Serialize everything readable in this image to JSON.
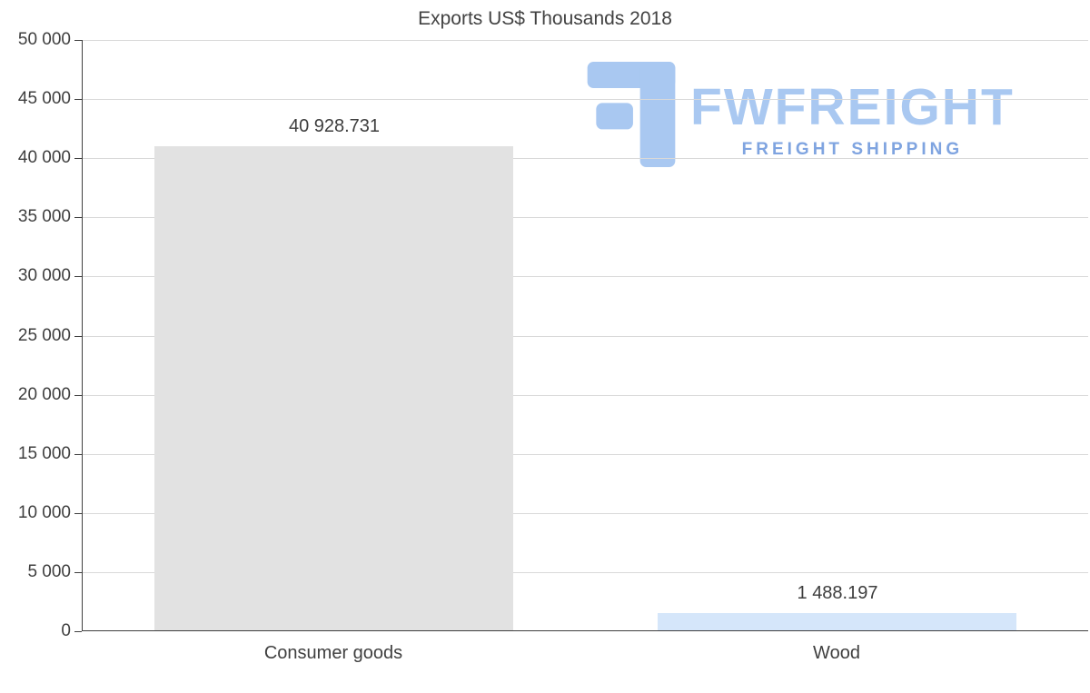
{
  "title": "Exports US$ Thousands 2018",
  "logo": {
    "text": "FWFREIGHT",
    "subtext": "FREIGHT SHIPPING",
    "color_primary": "#a9c8f1",
    "color_secondary": "#7fa4e0"
  },
  "chart_data": {
    "type": "bar",
    "title": "Exports US$ Thousands 2018",
    "categories": [
      "Consumer goods",
      "Wood"
    ],
    "values": [
      40928.731,
      1488.197
    ],
    "value_labels": [
      "40 928.731",
      "1 488.197"
    ],
    "bar_colors": [
      "#e2e2e2",
      "#d5e6fa"
    ],
    "xlabel": "",
    "ylabel": "",
    "ylim": [
      0,
      50000
    ],
    "ytick_step": 5000,
    "ytick_labels": [
      "0",
      "5 000",
      "10 000",
      "15 000",
      "20 000",
      "25 000",
      "30 000",
      "35 000",
      "40 000",
      "45 000",
      "50 000"
    ],
    "grid": true,
    "legend": false,
    "gridline_color": "#d9d9d9",
    "axis_color": "#3f3f3f",
    "text_color": "#3f3f3f"
  }
}
